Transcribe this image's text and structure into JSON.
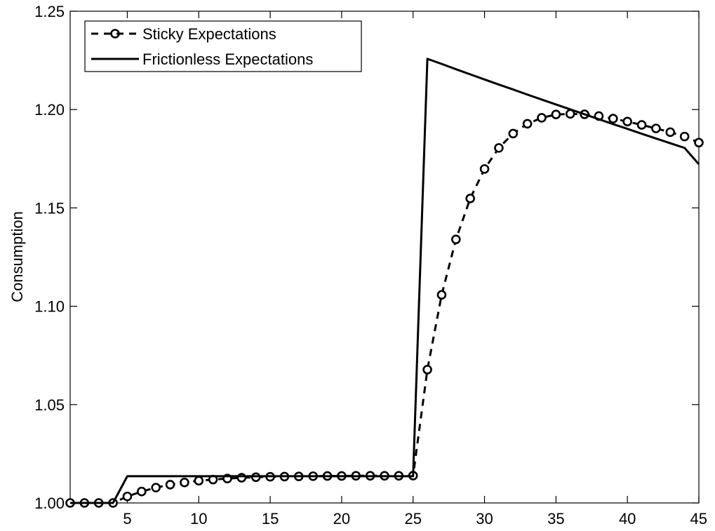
{
  "chart_data": {
    "type": "line",
    "title": "",
    "xlabel": "",
    "ylabel": "Consumption",
    "xlim": [
      1,
      45
    ],
    "ylim": [
      1.0,
      1.25
    ],
    "xticks": [
      5,
      10,
      15,
      20,
      25,
      30,
      35,
      40,
      45
    ],
    "yticks": [
      1.0,
      1.05,
      1.1,
      1.15,
      1.2,
      1.25
    ],
    "ytick_labels": [
      "1.00",
      "1.05",
      "1.10",
      "1.15",
      "1.20",
      "1.25"
    ],
    "grid": false,
    "legend_position": "top-left",
    "series": [
      {
        "name": "Sticky Expectations",
        "style": "dashed-circle-markers",
        "color": "#000000",
        "x": [
          1,
          2,
          3,
          4,
          5,
          6,
          7,
          8,
          9,
          10,
          11,
          12,
          13,
          14,
          15,
          16,
          17,
          18,
          19,
          20,
          21,
          22,
          23,
          24,
          25,
          26,
          27,
          28,
          29,
          30,
          31,
          32,
          33,
          34,
          35,
          36,
          37,
          38,
          39,
          40,
          41,
          42,
          43,
          44,
          45
        ],
        "y": [
          1.0,
          1.0,
          1.0,
          1.0,
          1.0033,
          1.0058,
          1.0078,
          1.0093,
          1.0104,
          1.0113,
          1.0119,
          1.0124,
          1.0128,
          1.0131,
          1.0133,
          1.0134,
          1.0135,
          1.0136,
          1.0137,
          1.0137,
          1.0138,
          1.0138,
          1.0138,
          1.0138,
          1.0139,
          1.0678,
          1.1058,
          1.134,
          1.1548,
          1.1698,
          1.1805,
          1.1878,
          1.1928,
          1.1958,
          1.1975,
          1.1978,
          1.1976,
          1.1967,
          1.1954,
          1.1939,
          1.1922,
          1.1904,
          1.1885,
          1.1863,
          1.1832
        ]
      },
      {
        "name": "Frictionless Expectations",
        "style": "solid",
        "color": "#000000",
        "x": [
          1,
          2,
          3,
          4,
          5,
          6,
          7,
          8,
          9,
          10,
          11,
          12,
          13,
          14,
          15,
          16,
          17,
          18,
          19,
          20,
          21,
          22,
          23,
          24,
          25,
          26,
          27,
          28,
          29,
          30,
          31,
          32,
          33,
          34,
          35,
          36,
          37,
          38,
          39,
          40,
          41,
          42,
          43,
          44,
          45
        ],
        "y": [
          1.0,
          1.0,
          1.0,
          1.0,
          1.0136,
          1.0136,
          1.0136,
          1.0136,
          1.0136,
          1.0136,
          1.0136,
          1.0136,
          1.0136,
          1.0136,
          1.0136,
          1.0136,
          1.0136,
          1.0136,
          1.0136,
          1.0136,
          1.0136,
          1.0136,
          1.0136,
          1.0136,
          1.0136,
          1.2258,
          1.2232,
          1.2205,
          1.2179,
          1.2153,
          1.2127,
          1.2102,
          1.2076,
          1.2051,
          1.2026,
          1.2001,
          1.1976,
          1.1951,
          1.1926,
          1.1902,
          1.1877,
          1.1853,
          1.1829,
          1.1805,
          1.1722
        ]
      }
    ]
  }
}
